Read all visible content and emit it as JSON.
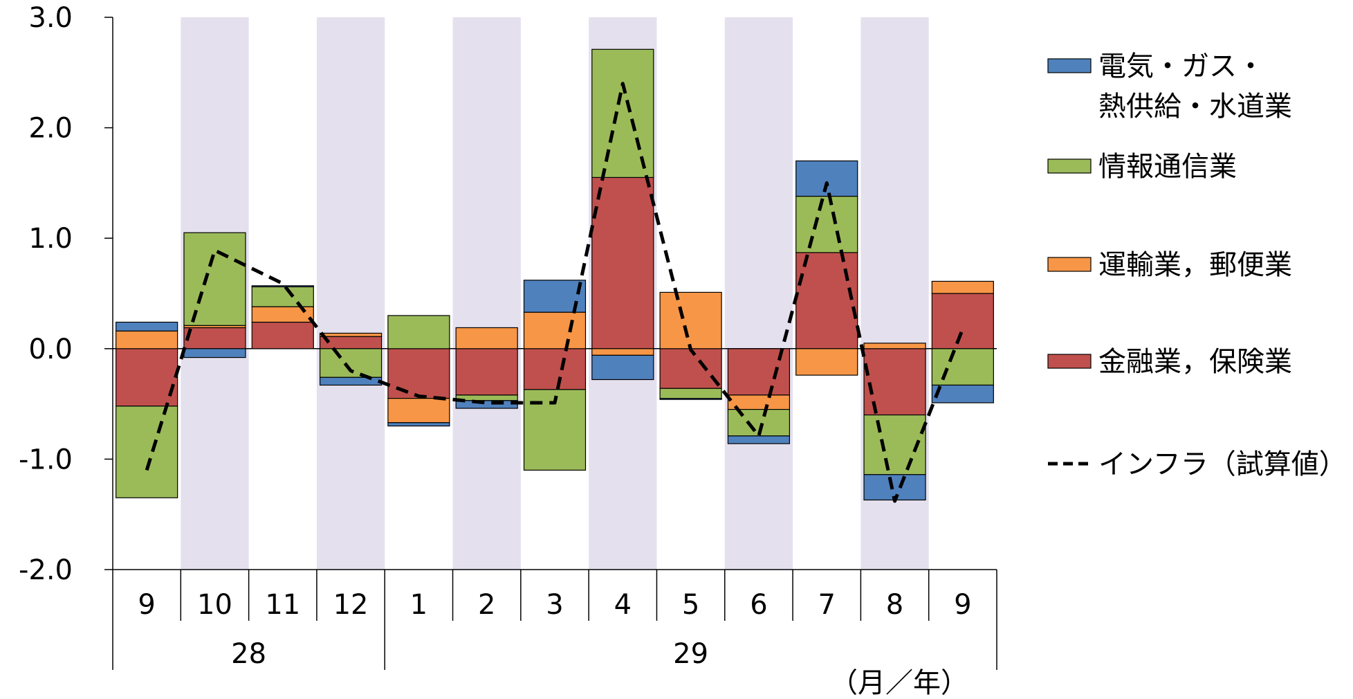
{
  "chart_data": {
    "type": "bar",
    "stacked": true,
    "categories": [
      "9",
      "10",
      "11",
      "12",
      "1",
      "2",
      "3",
      "4",
      "5",
      "6",
      "7",
      "8",
      "9"
    ],
    "year_groups": [
      {
        "label": "28",
        "start": 0,
        "end": 3
      },
      {
        "label": "29",
        "start": 4,
        "end": 12
      }
    ],
    "unit_label": "（月／年）",
    "ylim": [
      -2.0,
      3.0
    ],
    "yticks": [
      "3.0",
      "2.0",
      "1.0",
      "0.0",
      "-1.0",
      "-2.0"
    ],
    "shaded_columns": [
      1,
      3,
      5,
      7,
      9,
      11
    ],
    "shade_color": "#E4E0EE",
    "series": [
      {
        "name": "金融業，保険業",
        "color": "#C0504D",
        "values": [
          -0.52,
          0.19,
          0.24,
          0.11,
          -0.45,
          -0.42,
          -0.37,
          1.55,
          -0.36,
          -0.42,
          0.87,
          -0.6,
          0.5
        ]
      },
      {
        "name": "運輸業，郵便業",
        "color": "#F79646",
        "values": [
          0.16,
          0.02,
          0.14,
          0.03,
          -0.22,
          0.19,
          0.33,
          -0.06,
          0.51,
          -0.13,
          -0.24,
          0.05,
          0.11
        ]
      },
      {
        "name": "情報通信業",
        "color": "#9BBB59",
        "values": [
          -0.83,
          0.84,
          0.18,
          -0.26,
          0.3,
          -0.05,
          -0.73,
          1.16,
          -0.09,
          -0.24,
          0.51,
          -0.54,
          -0.33
        ]
      },
      {
        "name": "電気・ガス・熱供給・水道業",
        "color": "#4F81BD",
        "values": [
          0.08,
          -0.08,
          0.01,
          -0.07,
          -0.03,
          -0.07,
          0.29,
          -0.22,
          -0.01,
          -0.07,
          0.32,
          -0.23,
          -0.16
        ]
      }
    ],
    "line": {
      "name": "インフラ（試算値）",
      "values": [
        -1.1,
        0.89,
        0.59,
        -0.2,
        -0.43,
        -0.49,
        -0.49,
        2.4,
        -0.01,
        -0.79,
        1.5,
        -1.38,
        0.18
      ]
    },
    "legend": {
      "position": "right",
      "entries": [
        {
          "key": "elec",
          "lines": [
            "電気・ガス・",
            "熱供給・水道業"
          ],
          "color": "#4F81BD",
          "kind": "box"
        },
        {
          "key": "info",
          "lines": [
            "情報通信業"
          ],
          "color": "#9BBB59",
          "kind": "box"
        },
        {
          "key": "trans",
          "lines": [
            "運輸業，郵便業"
          ],
          "color": "#F79646",
          "kind": "box"
        },
        {
          "key": "fin",
          "lines": [
            "金融業，保険業"
          ],
          "color": "#C0504D",
          "kind": "box"
        },
        {
          "key": "line",
          "lines": [
            "インフラ（試算値）"
          ],
          "color": "#000000",
          "kind": "dash"
        }
      ]
    }
  }
}
